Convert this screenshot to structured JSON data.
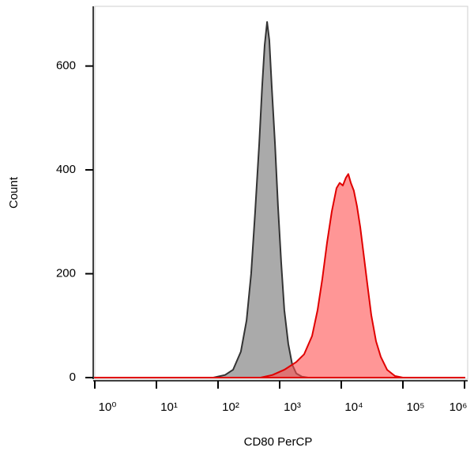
{
  "chart_data": {
    "type": "area",
    "xlabel": "CD80 PerCP",
    "ylabel": "Count",
    "xscale": "log",
    "xlim": [
      1,
      1000000
    ],
    "ylim": [
      0,
      715
    ],
    "xticks": [
      {
        "value": 1,
        "label": "10⁰"
      },
      {
        "value": 10,
        "label": "10¹"
      },
      {
        "value": 100,
        "label": "10²"
      },
      {
        "value": 1000,
        "label": "10³"
      },
      {
        "value": 10000,
        "label": "10⁴"
      },
      {
        "value": 100000,
        "label": "10⁵"
      },
      {
        "value": 1000000,
        "label": "10⁶"
      }
    ],
    "yticks": [
      0,
      200,
      400,
      600
    ],
    "series": [
      {
        "color": "#333333",
        "fill": "#aaaaaa",
        "x": [
          1,
          84,
          130,
          175,
          235,
          290,
          345,
          400,
          465,
          520,
          570,
          625,
          680,
          745,
          840,
          940,
          1060,
          1190,
          1380,
          1600,
          1860,
          2290,
          2900,
          1000000
        ],
        "values": [
          0,
          0,
          5,
          15,
          50,
          110,
          200,
          320,
          450,
          560,
          640,
          685,
          650,
          560,
          450,
          330,
          220,
          130,
          65,
          25,
          8,
          2,
          0,
          0
        ]
      },
      {
        "color": "#e00000",
        "fill": "rgba(255,80,80,0.6)",
        "x": [
          1,
          490,
          765,
          1190,
          1860,
          2500,
          3350,
          4120,
          4920,
          5880,
          7020,
          8380,
          9420,
          10600,
          11900,
          13000,
          14300,
          16000,
          18000,
          20300,
          22900,
          26500,
          30700,
          36600,
          43800,
          55400,
          74400,
          100000,
          1000000
        ],
        "values": [
          0,
          0,
          5,
          15,
          30,
          45,
          80,
          130,
          190,
          260,
          320,
          365,
          375,
          370,
          385,
          392,
          375,
          360,
          330,
          290,
          240,
          180,
          120,
          70,
          40,
          15,
          3,
          0,
          0
        ]
      }
    ]
  }
}
